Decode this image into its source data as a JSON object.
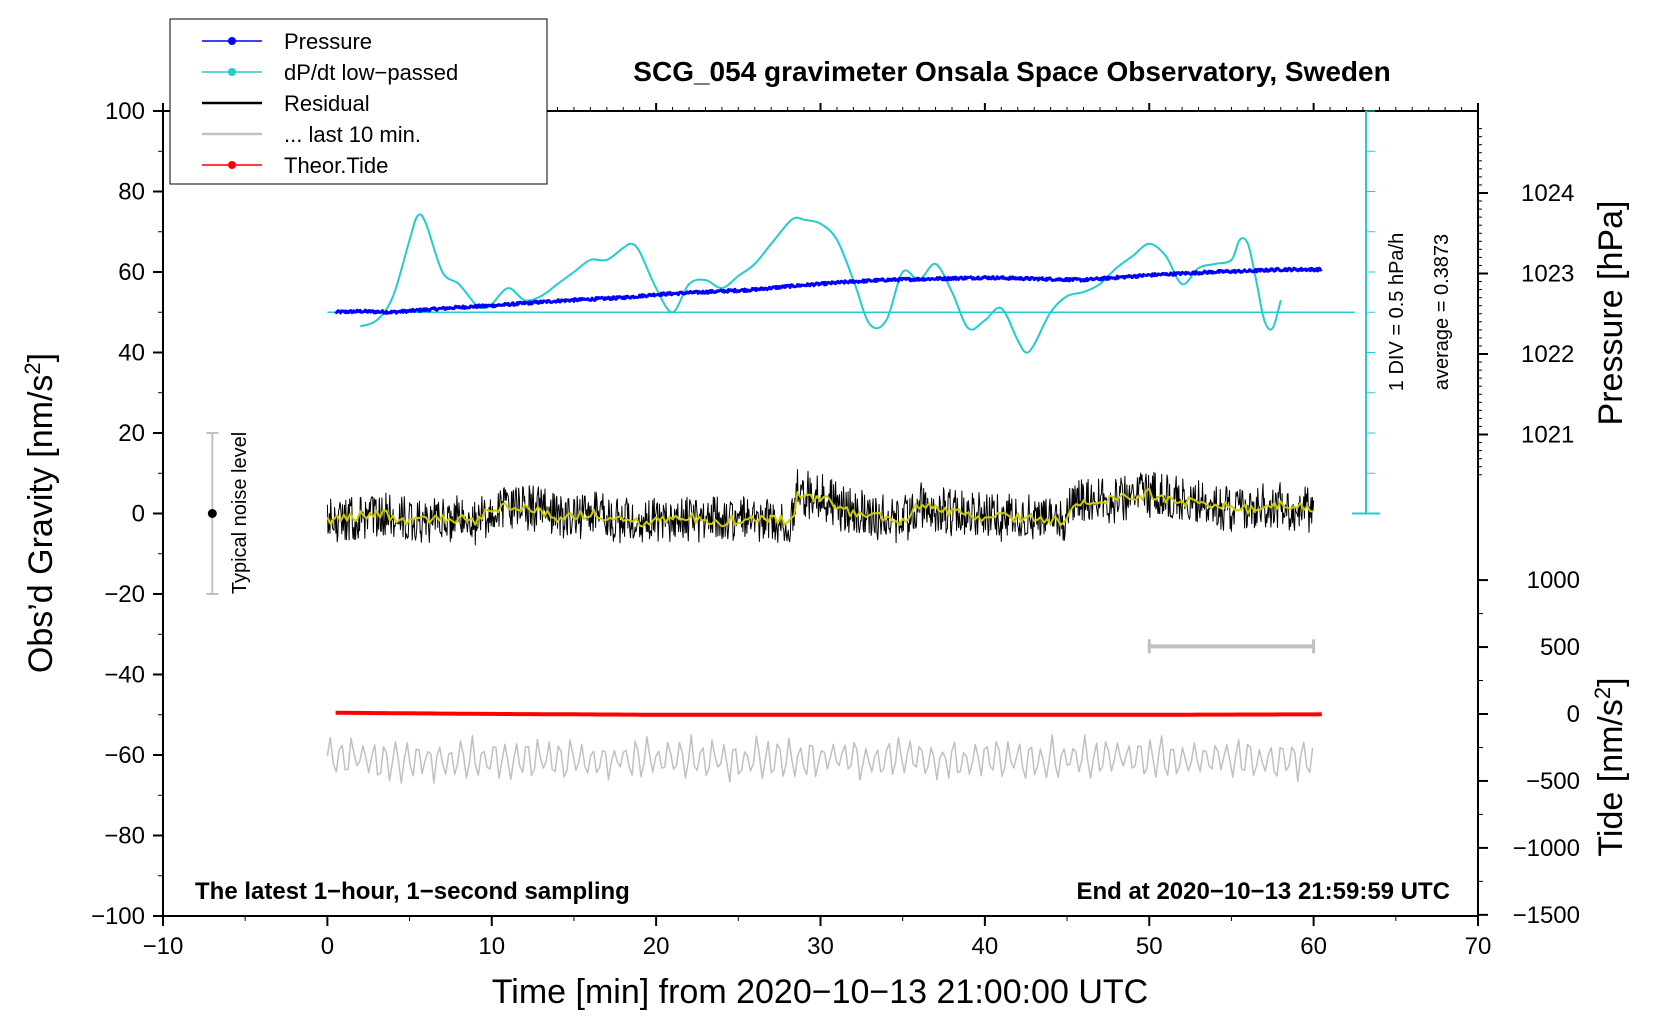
{
  "colors": {
    "pressure": "#0000ff",
    "dpdt": "#22cccc",
    "residual": "#000000",
    "last10": "#c0c0c0",
    "tide": "#ff0000",
    "smoothed": "#cccc00"
  },
  "chart_data": {
    "type": "line",
    "title": "SCG_054 gravimeter Onsala Space Observatory, Sweden",
    "xlabel": "Time [min] from 2020−10−13 21:00:00 UTC",
    "ylabel_base": "Obs’d Gravity [nm/s",
    "ylabel_sup": "2",
    "ylabel_end": "]",
    "y2label": "Pressure [hPa]",
    "y3label_base": "Tide [nm/s",
    "y3label_sup": "2",
    "y3label_end": "]",
    "xlim": [
      -10,
      70
    ],
    "ylim": [
      -100,
      100
    ],
    "x_ticks": [
      "−10",
      "0",
      "10",
      "20",
      "30",
      "40",
      "50",
      "60",
      "70"
    ],
    "y_ticks": [
      "−100",
      "−80",
      "−60",
      "−40",
      "−20",
      "0",
      "20",
      "40",
      "60",
      "80",
      "100"
    ],
    "pressure_axis": {
      "ticks": [
        "1021",
        "1022",
        "1023",
        "1024"
      ],
      "values": [
        1021,
        1022,
        1023,
        1024
      ]
    },
    "tide_axis": {
      "ticks": [
        "−1500",
        "−1000",
        "−500",
        "0",
        "500",
        "1000"
      ],
      "values": [
        -1500,
        -1000,
        -500,
        0,
        500,
        1000
      ]
    },
    "legend": [
      {
        "label": "Pressure",
        "style": "line-dot",
        "color_key": "pressure"
      },
      {
        "label": "dP/dt low−passed",
        "style": "line-dot",
        "color_key": "dpdt"
      },
      {
        "label": "Residual",
        "style": "line",
        "color_key": "residual"
      },
      {
        "label": "... last 10 min.",
        "style": "line",
        "color_key": "last10"
      },
      {
        "label": "Theor.Tide",
        "style": "line-dot",
        "color_key": "tide"
      }
    ],
    "dpdt_scale_label": "1 DIV = 0.5 hPa/h",
    "dpdt_average_label": "average = 0.3873",
    "noise_label": "Typical noise level",
    "noise_bar": {
      "x": -7,
      "center": 0,
      "half_range": 20
    },
    "last10_bar": {
      "x_start": 50,
      "x_end": 60,
      "y": -33
    },
    "note_left": "The latest 1−hour, 1−second sampling",
    "note_right": "End at 2020−10−13 21:59:59 UTC",
    "series": [
      {
        "name": "Pressure",
        "unit": "hPa",
        "x": [
          0.5,
          2,
          4,
          6,
          8,
          10,
          12,
          14,
          16,
          18,
          20,
          22,
          24,
          26,
          28,
          30,
          32,
          34,
          36,
          38,
          40,
          42,
          44,
          46,
          48,
          50,
          52,
          54,
          56,
          58,
          60.5
        ],
        "values": [
          1022.52,
          1022.53,
          1022.52,
          1022.55,
          1022.58,
          1022.6,
          1022.63,
          1022.66,
          1022.68,
          1022.7,
          1022.74,
          1022.76,
          1022.78,
          1022.8,
          1022.84,
          1022.87,
          1022.9,
          1022.92,
          1022.93,
          1022.94,
          1022.95,
          1022.94,
          1022.93,
          1022.92,
          1022.95,
          1022.98,
          1023,
          1023.02,
          1023.03,
          1023.05,
          1023.05
        ]
      },
      {
        "name": "dP/dt low−passed",
        "unit": "nm/s2 plot units",
        "x": [
          2,
          3,
          4,
          5,
          5.5,
          6,
          7,
          8,
          9,
          9.5,
          10,
          11,
          12,
          13,
          14,
          15,
          16,
          17,
          18,
          18.5,
          19,
          20,
          21,
          22,
          23,
          24,
          25,
          26,
          27,
          28,
          28.5,
          29,
          30,
          31,
          32,
          33,
          34,
          35,
          36,
          37,
          38,
          39,
          40,
          41,
          42,
          42.5,
          43,
          44,
          45,
          46,
          47,
          48,
          49,
          50,
          51,
          52,
          53,
          54,
          55,
          55.5,
          56,
          56.5,
          57,
          57.5,
          58
        ],
        "values": [
          46.5,
          48,
          54,
          68,
          74,
          72,
          60,
          57,
          52,
          51,
          52,
          56,
          53,
          54,
          57,
          60,
          63,
          63,
          66,
          67,
          65,
          56,
          50,
          57,
          58,
          56,
          59,
          62,
          67,
          72,
          73.5,
          73,
          72,
          68,
          58,
          47,
          48,
          60,
          58,
          62,
          55,
          46,
          48,
          51,
          43,
          40,
          42,
          50,
          54,
          55,
          57,
          61,
          64,
          67,
          64,
          57,
          61,
          62,
          63,
          68,
          67,
          58,
          48,
          46,
          53
        ]
      },
      {
        "name": "Residual",
        "unit": "nm/s2",
        "x": [
          0,
          1,
          3,
          5,
          7,
          9,
          10,
          12,
          14,
          16,
          18,
          20,
          22,
          24,
          26,
          28.3,
          28.6,
          30,
          32,
          34,
          35,
          36,
          37,
          40,
          43,
          45,
          45.3,
          47,
          49,
          50,
          52,
          54,
          56,
          58,
          60
        ],
        "values": [
          -2,
          -1,
          0,
          -2,
          -1,
          -2,
          1,
          2,
          -1,
          0,
          -2,
          -2,
          -1,
          -2,
          -1,
          -2,
          5,
          4,
          0,
          -1,
          -2,
          2,
          1,
          -1,
          -1,
          -2,
          3,
          3,
          4,
          5,
          3,
          2,
          1,
          2,
          1
        ]
      },
      {
        "name": "... last 10 min.",
        "unit": "nm/s2",
        "x_start": 0,
        "x_end": 60,
        "baseline": -61,
        "amplitude": 4.5
      },
      {
        "name": "Theor.Tide",
        "unit": "nm/s2",
        "x": [
          0.5,
          10,
          20,
          30,
          40,
          50,
          60.5
        ],
        "values": [
          -49.5,
          -49.8,
          -50,
          -50,
          -50,
          -50,
          -49.9
        ]
      }
    ]
  }
}
